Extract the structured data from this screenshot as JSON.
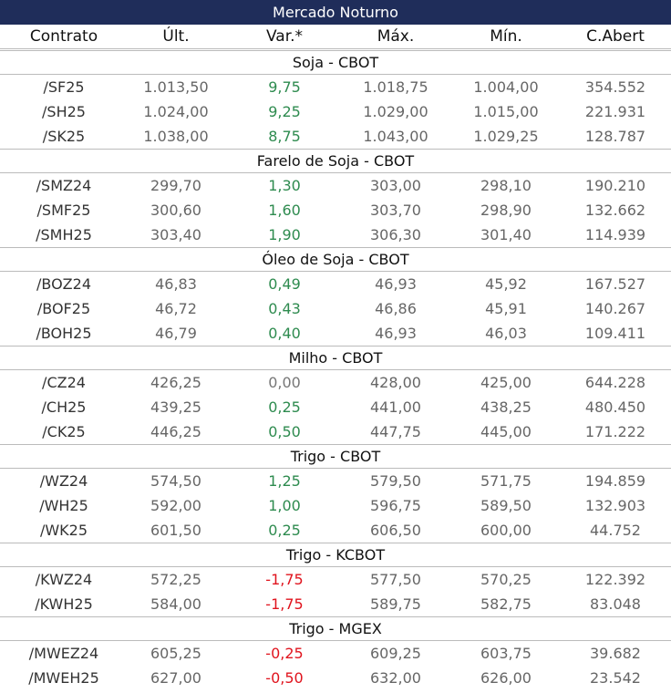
{
  "title": "Mercado Noturno",
  "columns": [
    "Contrato",
    "Últ.",
    "Var.*",
    "Máx.",
    "Mín.",
    "C.Abert"
  ],
  "sections": [
    {
      "name": "Soja - CBOT",
      "rows": [
        [
          "/SF25",
          "1.013,50",
          "9,75",
          "1.018,75",
          "1.004,00",
          "354.552"
        ],
        [
          "/SH25",
          "1.024,00",
          "9,25",
          "1.029,00",
          "1.015,00",
          "221.931"
        ],
        [
          "/SK25",
          "1.038,00",
          "8,75",
          "1.043,00",
          "1.029,25",
          "128.787"
        ]
      ]
    },
    {
      "name": "Farelo de Soja - CBOT",
      "rows": [
        [
          "/SMZ24",
          "299,70",
          "1,30",
          "303,00",
          "298,10",
          "190.210"
        ],
        [
          "/SMF25",
          "300,60",
          "1,60",
          "303,70",
          "298,90",
          "132.662"
        ],
        [
          "/SMH25",
          "303,40",
          "1,90",
          "306,30",
          "301,40",
          "114.939"
        ]
      ]
    },
    {
      "name": "Óleo de Soja - CBOT",
      "rows": [
        [
          "/BOZ24",
          "46,83",
          "0,49",
          "46,93",
          "45,92",
          "167.527"
        ],
        [
          "/BOF25",
          "46,72",
          "0,43",
          "46,86",
          "45,91",
          "140.267"
        ],
        [
          "/BOH25",
          "46,79",
          "0,40",
          "46,93",
          "46,03",
          "109.411"
        ]
      ]
    },
    {
      "name": "Milho - CBOT",
      "rows": [
        [
          "/CZ24",
          "426,25",
          "0,00",
          "428,00",
          "425,00",
          "644.228"
        ],
        [
          "/CH25",
          "439,25",
          "0,25",
          "441,00",
          "438,25",
          "480.450"
        ],
        [
          "/CK25",
          "446,25",
          "0,50",
          "447,75",
          "445,00",
          "171.222"
        ]
      ]
    },
    {
      "name": "Trigo - CBOT",
      "rows": [
        [
          "/WZ24",
          "574,50",
          "1,25",
          "579,50",
          "571,75",
          "194.859"
        ],
        [
          "/WH25",
          "592,00",
          "1,00",
          "596,75",
          "589,50",
          "132.903"
        ],
        [
          "/WK25",
          "601,50",
          "0,25",
          "606,50",
          "600,00",
          "44.752"
        ]
      ]
    },
    {
      "name": "Trigo - KCBOT",
      "rows": [
        [
          "/KWZ24",
          "572,25",
          "-1,75",
          "577,50",
          "570,25",
          "122.392"
        ],
        [
          "/KWH25",
          "584,00",
          "-1,75",
          "589,75",
          "582,75",
          "83.048"
        ]
      ]
    },
    {
      "name": "Trigo - MGEX",
      "rows": [
        [
          "/MWEZ24",
          "605,25",
          "-0,25",
          "609,25",
          "603,75",
          "39.682"
        ],
        [
          "/MWEH25",
          "627,00",
          "-0,50",
          "632,00",
          "626,00",
          "23.542"
        ]
      ]
    }
  ]
}
